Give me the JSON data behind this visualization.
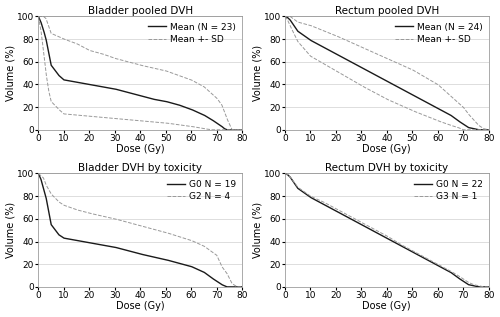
{
  "title_bladder_pooled": "Bladder pooled DVH",
  "title_rectum_pooled": "Rectum pooled DVH",
  "title_bladder_tox": "Bladder DVH by toxicity",
  "title_rectum_tox": "Rectum DVH by toxicity",
  "xlabel": "Dose (Gy)",
  "ylabel": "Volume (%)",
  "xlim": [
    0,
    80
  ],
  "ylim": [
    0,
    100
  ],
  "xticks": [
    0,
    10,
    20,
    30,
    40,
    50,
    60,
    70,
    80
  ],
  "yticks": [
    0,
    20,
    40,
    60,
    80,
    100
  ],
  "bladder_mean_legend": "Mean (N = 23)",
  "bladder_sd_legend": "Mean +- SD",
  "rectum_mean_legend": "Mean (N = 24)",
  "rectum_sd_legend": "Mean +- SD",
  "bladder_g0_legend": "G0 N = 19",
  "bladder_g2_legend": "G2 N = 4",
  "rectum_g0_legend": "G0 N = 22",
  "rectum_g3_legend": "G3 N = 1",
  "line_color_mean": "#1a1a1a",
  "line_color_sd": "#999999",
  "line_color_g0": "#1a1a1a",
  "line_color_g2": "#999999",
  "line_color_g0r": "#1a1a1a",
  "line_color_g3r": "#999999",
  "background_color": "#ffffff",
  "grid_color": "#d0d0d0",
  "title_fontsize": 7.5,
  "label_fontsize": 7,
  "tick_fontsize": 6.5,
  "legend_fontsize": 6.5,
  "mean_lw": 1.0,
  "sd_lw": 0.7
}
